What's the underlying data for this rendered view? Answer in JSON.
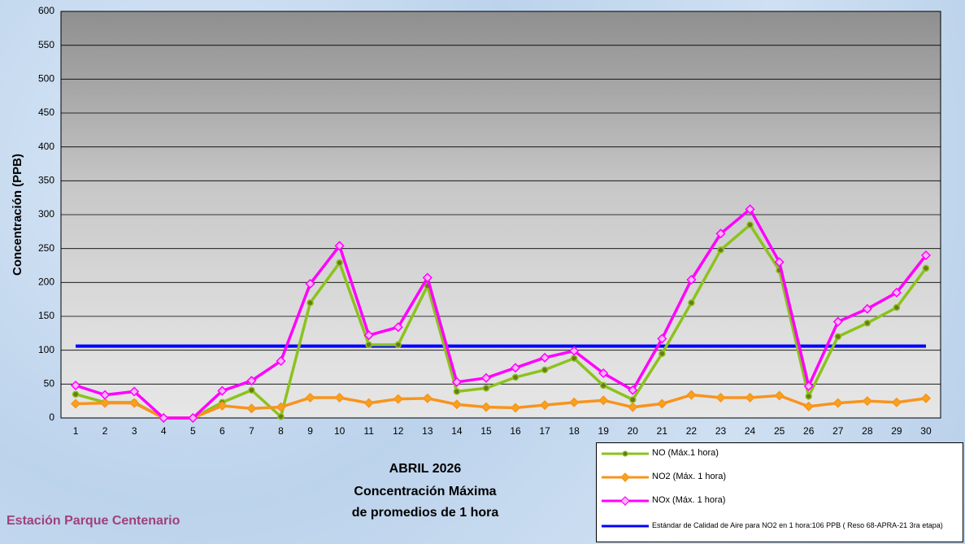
{
  "chart_data": {
    "type": "line",
    "title": [
      "ABRIL 2026",
      "Concentración Máxima",
      "de promedios de 1 hora"
    ],
    "annotation": "Estación Parque Centenario",
    "y_label": "Concentración  (PPB)",
    "categories": [
      "1",
      "2",
      "3",
      "4",
      "5",
      "6",
      "7",
      "8",
      "9",
      "10",
      "11",
      "12",
      "13",
      "14",
      "15",
      "16",
      "17",
      "18",
      "19",
      "20",
      "21",
      "22",
      "23",
      "24",
      "25",
      "26",
      "27",
      "28",
      "29",
      "30"
    ],
    "series": [
      {
        "name": "NO (Máx.1 hora)",
        "color": "#8cc21e",
        "marker": "circle",
        "marker_color": "#6b7a1a",
        "values": [
          35,
          23,
          23,
          0,
          0,
          23,
          41,
          2,
          170,
          229,
          108,
          108,
          195,
          39,
          44,
          60,
          71,
          88,
          48,
          27,
          95,
          170,
          248,
          285,
          218,
          32,
          120,
          140,
          163,
          221
        ]
      },
      {
        "name": "NO2 (Máx. 1 hora)",
        "color": "#f7941d",
        "marker": "diamond",
        "marker_color": "#f7a21d",
        "values": [
          21,
          22,
          22,
          0,
          0,
          18,
          14,
          16,
          30,
          30,
          22,
          28,
          29,
          20,
          16,
          15,
          19,
          23,
          26,
          16,
          21,
          34,
          30,
          30,
          33,
          17,
          22,
          25,
          23,
          29
        ]
      },
      {
        "name": "NOx (Máx. 1 hora)",
        "color": "#ff00ff",
        "marker": "diamond",
        "marker_color": "#ffb3ff",
        "values": [
          48,
          34,
          39,
          0,
          0,
          40,
          55,
          84,
          198,
          254,
          122,
          134,
          207,
          53,
          59,
          74,
          89,
          99,
          66,
          41,
          117,
          204,
          272,
          308,
          230,
          47,
          142,
          161,
          185,
          240
        ]
      }
    ],
    "hlines": [
      {
        "name": "Estándar de Calidad de Aire para NO2 en 1 hora:106 PPB ( Reso 68-APRA-21 3ra etapa)",
        "value": 106,
        "color": "#0000ff"
      }
    ],
    "ylim": [
      0,
      600
    ],
    "yticks": [
      0,
      50,
      100,
      150,
      200,
      250,
      300,
      350,
      400,
      450,
      500,
      550,
      600
    ],
    "grid": true
  }
}
